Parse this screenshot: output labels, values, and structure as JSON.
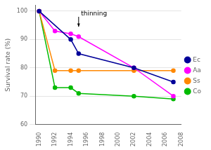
{
  "chart_data": {
    "type": "line",
    "y_label": "Survival rate (%)",
    "series": [
      {
        "name": "Ec",
        "color": "#000099",
        "marker": "circle",
        "x": [
          1990,
          1994,
          1995,
          2002,
          2007
        ],
        "values": [
          100,
          90,
          85,
          80,
          75
        ]
      },
      {
        "name": "Aa",
        "color": "#FF00FF",
        "marker": "circle",
        "x": [
          1990,
          1992,
          1994,
          1995,
          2002,
          2007
        ],
        "values": [
          100,
          93,
          92,
          91,
          80,
          70
        ]
      },
      {
        "name": "Ss",
        "color": "#FF8800",
        "marker": "circle",
        "x": [
          1990,
          1992,
          1994,
          1995,
          2002,
          2007
        ],
        "values": [
          100,
          79,
          79,
          79,
          79,
          79
        ]
      },
      {
        "name": "Co",
        "color": "#00BB00",
        "marker": "circle",
        "x": [
          1990,
          1992,
          1994,
          1995,
          2002,
          2007
        ],
        "values": [
          100,
          73,
          73,
          71,
          70,
          69
        ]
      }
    ],
    "xlim": [
      1989.5,
      2008
    ],
    "ylim": [
      60,
      102
    ],
    "xticks": [
      1990,
      1992,
      1994,
      1996,
      1998,
      2000,
      2002,
      2004,
      2006,
      2008
    ],
    "yticks": [
      60,
      70,
      80,
      90,
      100
    ],
    "grid": "y",
    "legend": "right",
    "annotations": [
      {
        "text": "thinning",
        "x": 1995.3,
        "y": 98,
        "arrow": {
          "x": 1995,
          "y": 94.5
        }
      }
    ]
  }
}
